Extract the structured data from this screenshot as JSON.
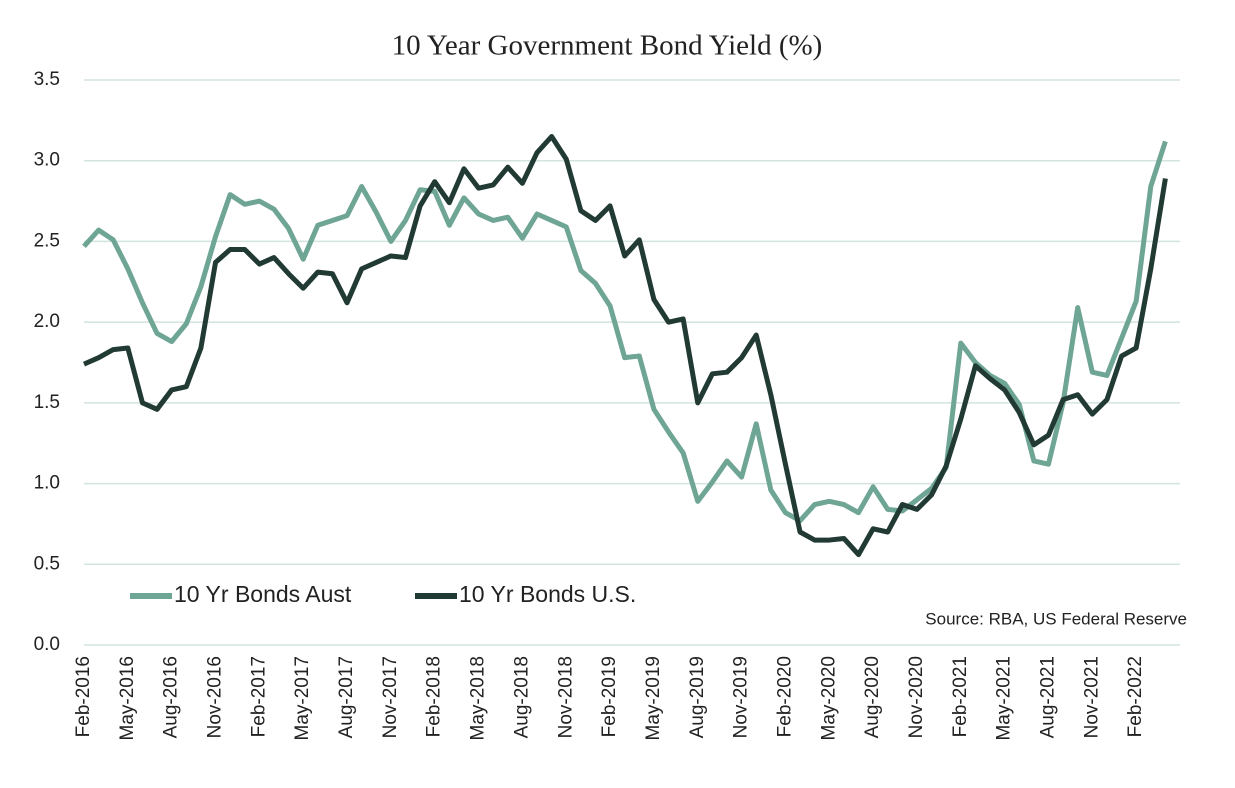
{
  "chart_data": {
    "type": "line",
    "title": "10 Year Government Bond Yield (%)",
    "source": "Source: RBA, US Federal Reserve",
    "categories": [
      "Feb-2016",
      null,
      null,
      "May-2016",
      null,
      null,
      "Aug-2016",
      null,
      null,
      "Nov-2016",
      null,
      null,
      "Feb-2017",
      null,
      null,
      "May-2017",
      null,
      null,
      "Aug-2017",
      null,
      null,
      "Nov-2017",
      null,
      null,
      "Feb-2018",
      null,
      null,
      "May-2018",
      null,
      null,
      "Aug-2018",
      null,
      null,
      "Nov-2018",
      null,
      null,
      "Feb-2019",
      null,
      null,
      "May-2019",
      null,
      null,
      "Aug-2019",
      null,
      null,
      "Nov-2019",
      null,
      null,
      "Feb-2020",
      null,
      null,
      "May-2020",
      null,
      null,
      "Aug-2020",
      null,
      null,
      "Nov-2020",
      null,
      null,
      "Feb-2021",
      null,
      null,
      "May-2021",
      null,
      null,
      "Aug-2021",
      null,
      null,
      "Nov-2021",
      null,
      null,
      "Feb-2022",
      null,
      null
    ],
    "series": [
      {
        "name": "10 Yr Bonds Aust",
        "color": "#6ea594",
        "values": [
          2.47,
          2.57,
          2.51,
          2.33,
          2.12,
          1.93,
          1.88,
          1.99,
          2.22,
          2.53,
          2.79,
          2.73,
          2.75,
          2.7,
          2.58,
          2.39,
          2.6,
          2.63,
          2.66,
          2.84,
          2.68,
          2.5,
          2.63,
          2.82,
          2.81,
          2.6,
          2.77,
          2.67,
          2.63,
          2.65,
          2.52,
          2.67,
          2.63,
          2.59,
          2.32,
          2.24,
          2.1,
          1.78,
          1.79,
          1.46,
          1.32,
          1.19,
          0.89,
          1.01,
          1.14,
          1.04,
          1.37,
          0.96,
          0.82,
          0.77,
          0.87,
          0.89,
          0.87,
          0.82,
          0.98,
          0.84,
          0.83,
          0.9,
          0.97,
          1.1,
          1.87,
          1.75,
          1.67,
          1.62,
          1.49,
          1.14,
          1.12,
          1.5,
          2.09,
          1.69,
          1.67,
          1.9,
          2.13,
          2.84,
          3.12
        ]
      },
      {
        "name": "10 Yr Bonds U.S.",
        "color": "#223a34",
        "values": [
          1.74,
          1.78,
          1.83,
          1.84,
          1.5,
          1.46,
          1.58,
          1.6,
          1.84,
          2.37,
          2.45,
          2.45,
          2.36,
          2.4,
          2.3,
          2.21,
          2.31,
          2.3,
          2.12,
          2.33,
          2.37,
          2.41,
          2.4,
          2.72,
          2.87,
          2.74,
          2.95,
          2.83,
          2.85,
          2.96,
          2.86,
          3.05,
          3.15,
          3.01,
          2.69,
          2.63,
          2.72,
          2.41,
          2.51,
          2.14,
          2.0,
          2.02,
          1.5,
          1.68,
          1.69,
          1.78,
          1.92,
          1.55,
          1.12,
          0.7,
          0.65,
          0.65,
          0.66,
          0.56,
          0.72,
          0.7,
          0.87,
          0.84,
          0.93,
          1.11,
          1.4,
          1.73,
          1.65,
          1.58,
          1.44,
          1.24,
          1.3,
          1.52,
          1.55,
          1.43,
          1.52,
          1.79,
          1.84,
          2.33,
          2.89
        ]
      }
    ],
    "ylim": [
      0,
      3.5
    ],
    "yticks": [
      {
        "value": 0,
        "label": "0.0"
      },
      0.5,
      {
        "value": 1,
        "label": "1.0"
      },
      1.5,
      {
        "value": 2,
        "label": "2.0"
      },
      2.5,
      {
        "value": 3,
        "label": "3.0"
      },
      3.5
    ],
    "grid": true,
    "legend": "bottom-left"
  }
}
